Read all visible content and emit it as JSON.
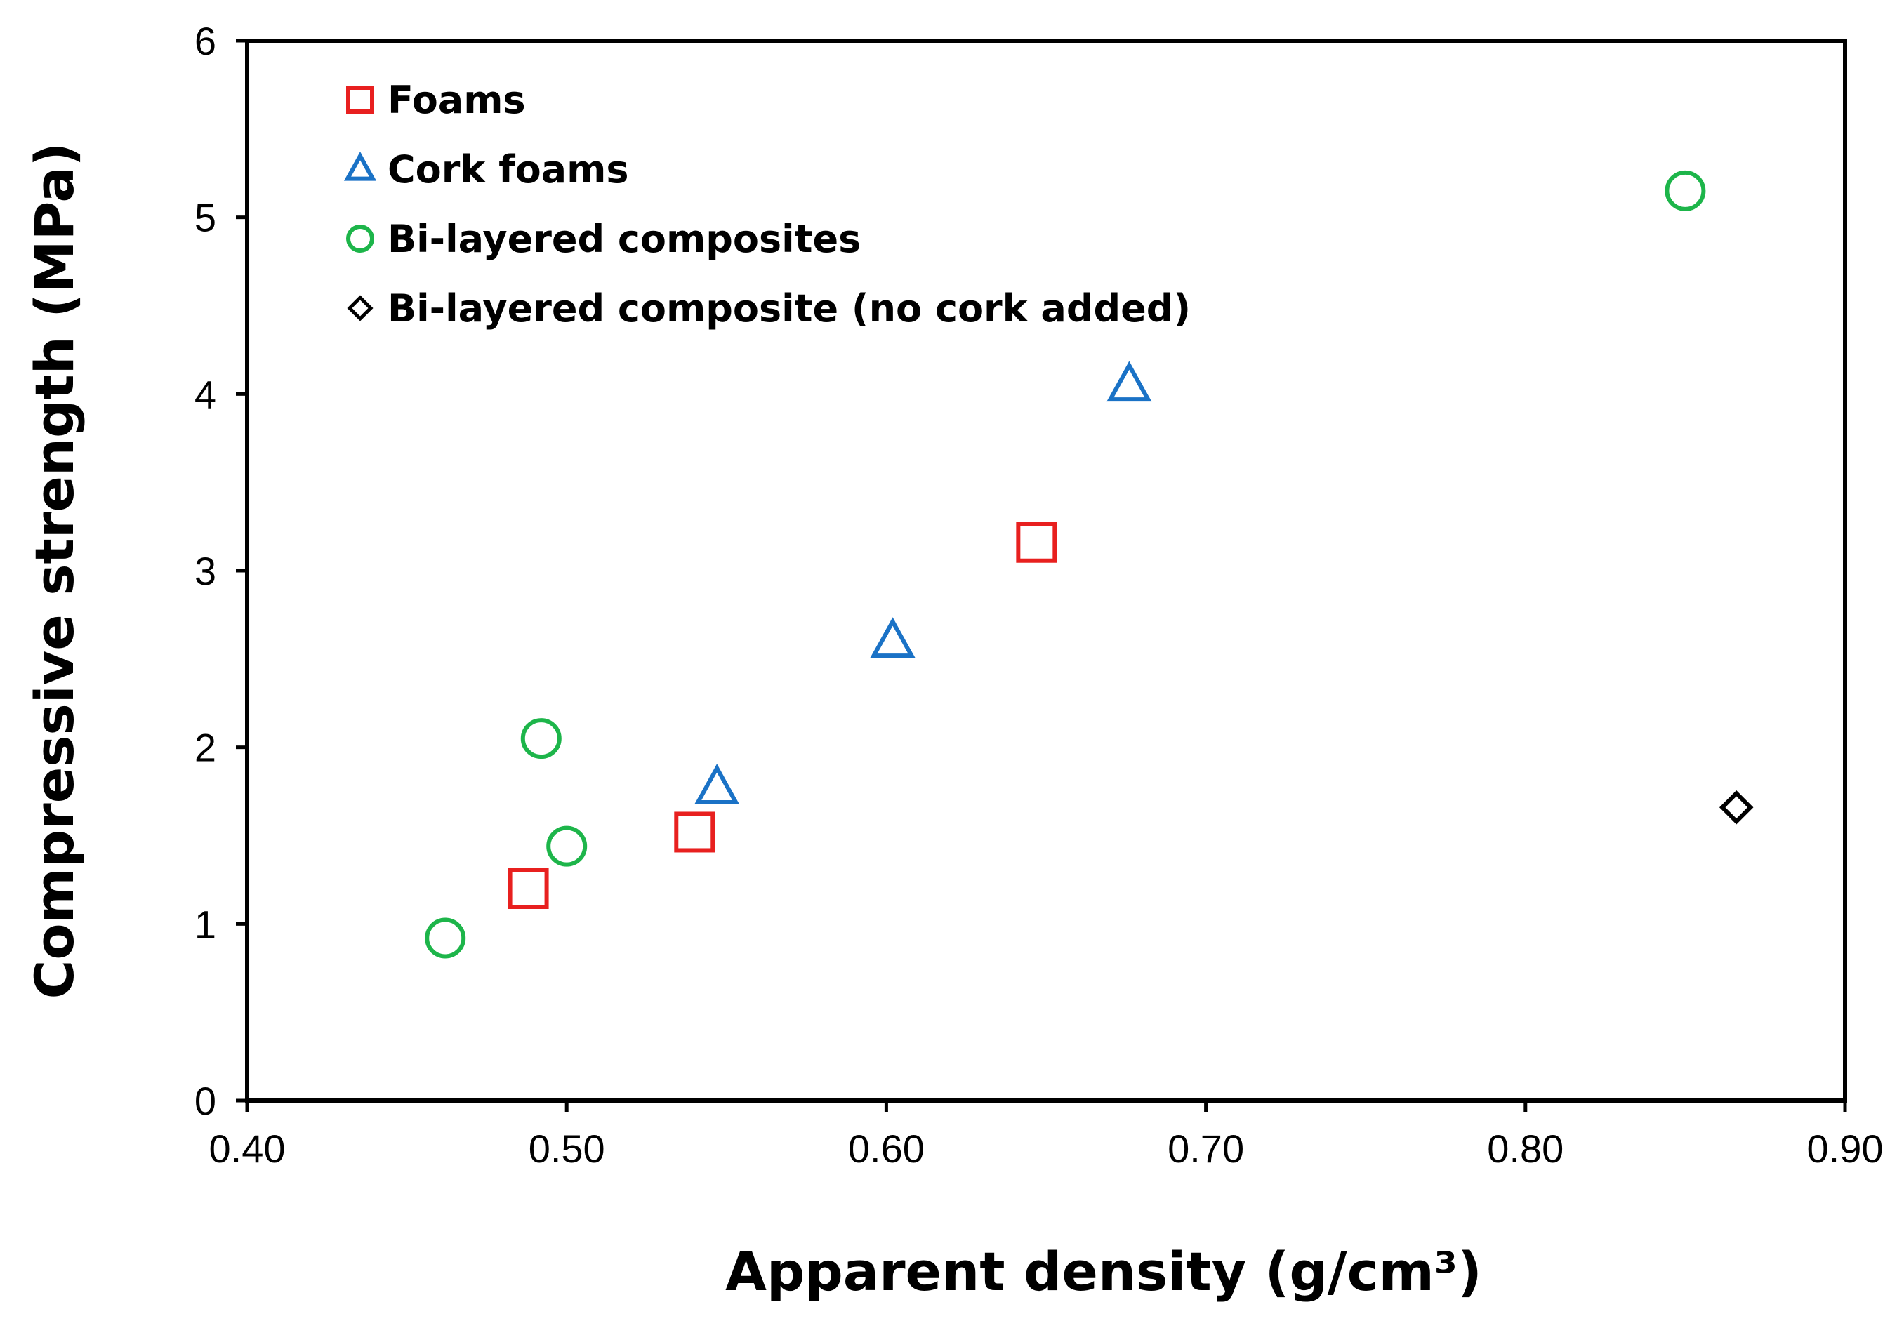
{
  "chart_data": {
    "type": "scatter",
    "title": "",
    "xlabel": "Apparent density (g/cm³)",
    "ylabel": "Compressive strength (MPa)",
    "xlim": [
      0.4,
      0.9
    ],
    "ylim": [
      0,
      6
    ],
    "xticks": [
      0.4,
      0.5,
      0.6,
      0.7,
      0.8,
      0.9
    ],
    "xtick_labels": [
      "0.40",
      "0.50",
      "0.60",
      "0.70",
      "0.80",
      "0.90"
    ],
    "yticks": [
      0,
      1,
      2,
      3,
      4,
      5,
      6
    ],
    "ytick_labels": [
      "0",
      "1",
      "2",
      "3",
      "4",
      "5",
      "6"
    ],
    "grid": false,
    "legend_position": "top-left",
    "series": [
      {
        "name": "Foams",
        "marker": "square",
        "color": "#e8201f",
        "points": [
          [
            0.488,
            1.2
          ],
          [
            0.54,
            1.52
          ],
          [
            0.647,
            3.16
          ]
        ]
      },
      {
        "name": "Cork foams",
        "marker": "triangle",
        "color": "#1a72c6",
        "points": [
          [
            0.547,
            1.77
          ],
          [
            0.602,
            2.6
          ],
          [
            0.676,
            4.05
          ]
        ]
      },
      {
        "name": "Bi-layered composites",
        "marker": "circle",
        "color": "#1db54a",
        "points": [
          [
            0.462,
            0.92
          ],
          [
            0.492,
            2.05
          ],
          [
            0.5,
            1.44
          ],
          [
            0.85,
            5.15
          ]
        ]
      },
      {
        "name": "Bi-layered composite (no cork added)",
        "marker": "diamond",
        "color": "#000000",
        "points": [
          [
            0.866,
            1.66
          ]
        ]
      }
    ]
  }
}
